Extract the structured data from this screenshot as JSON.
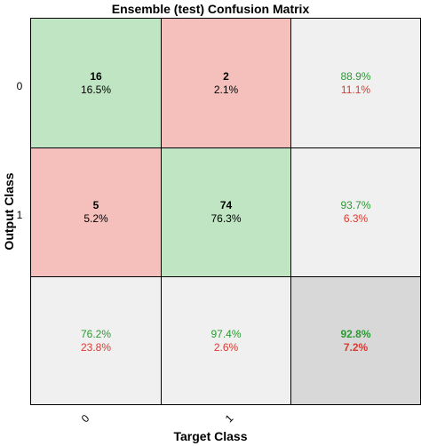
{
  "chart_data": {
    "type": "heatmap",
    "title": "Ensemble (test) Confusion Matrix",
    "xlabel": "Target Class",
    "ylabel": "Output Class",
    "x_tick_labels": [
      "0",
      "1"
    ],
    "y_tick_labels": [
      "0",
      "1"
    ],
    "cells": [
      [
        {
          "count": "16",
          "percent": "16.5%",
          "correct": true
        },
        {
          "count": "2",
          "percent": "2.1%",
          "correct": false
        }
      ],
      [
        {
          "count": "5",
          "percent": "5.2%",
          "correct": false
        },
        {
          "count": "74",
          "percent": "76.3%",
          "correct": true
        }
      ]
    ],
    "row_summary": [
      {
        "correct_pct": "88.9%",
        "error_pct": "11.1%"
      },
      {
        "correct_pct": "93.7%",
        "error_pct": "6.3%"
      }
    ],
    "col_summary": [
      {
        "correct_pct": "76.2%",
        "error_pct": "23.8%"
      },
      {
        "correct_pct": "97.4%",
        "error_pct": "2.6%"
      }
    ],
    "overall": {
      "correct_pct": "92.8%",
      "error_pct": "7.2%"
    },
    "colors": {
      "correct_cell": "#bfe5c3",
      "incorrect_cell": "#f5c0bb",
      "summary_cell": "#f0f0f0",
      "overall_cell": "#d8d8d8",
      "correct_text": "#2a9a32",
      "error_text": "#d93a30"
    }
  }
}
